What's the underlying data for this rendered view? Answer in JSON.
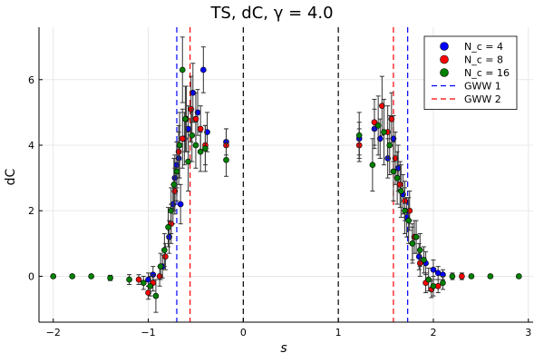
{
  "chart_data": {
    "type": "scatter",
    "title": "TS, dC, γ = 4.0",
    "xlabel": "s",
    "ylabel": "dC",
    "xlim": [
      -2.15,
      3.05
    ],
    "ylim": [
      -1.4,
      7.6
    ],
    "xticks": [
      -2,
      -1,
      0,
      1,
      2,
      3
    ],
    "yticks": [
      0,
      2,
      4,
      6
    ],
    "grid": true,
    "legend_position": "top-right",
    "vlines": [
      {
        "x": -0.7,
        "color": "#0000ff",
        "dash": true,
        "series": "GWW 1"
      },
      {
        "x": -0.56,
        "color": "#ff0000",
        "dash": true,
        "series": "GWW 2"
      },
      {
        "x": 0.0,
        "color": "#000000",
        "dash": true
      },
      {
        "x": 1.0,
        "color": "#000000",
        "dash": true
      },
      {
        "x": 1.58,
        "color": "#ff0000",
        "dash": true,
        "series": "GWW 2"
      },
      {
        "x": 1.73,
        "color": "#0000ff",
        "dash": true,
        "series": "GWW 1"
      }
    ],
    "series": [
      {
        "name": "N_c = 4",
        "color": "#0000ff",
        "points": [
          {
            "x": -1.0,
            "y": -0.1,
            "err": 0.2
          },
          {
            "x": -0.95,
            "y": 0.05,
            "err": 0.25
          },
          {
            "x": -0.85,
            "y": 0.3,
            "err": 0.35
          },
          {
            "x": -0.78,
            "y": 1.2,
            "err": 0.5
          },
          {
            "x": -0.74,
            "y": 2.2,
            "err": 0.6
          },
          {
            "x": -0.72,
            "y": 3.0,
            "err": 0.7
          },
          {
            "x": -0.7,
            "y": 3.4,
            "err": 0.7
          },
          {
            "x": -0.68,
            "y": 3.6,
            "err": 0.8
          },
          {
            "x": -0.66,
            "y": 2.2,
            "err": 0.6
          },
          {
            "x": -0.62,
            "y": 4.2,
            "err": 0.8
          },
          {
            "x": -0.58,
            "y": 4.5,
            "err": 0.7
          },
          {
            "x": -0.53,
            "y": 5.6,
            "err": 0.9
          },
          {
            "x": -0.48,
            "y": 5.0,
            "err": 0.7
          },
          {
            "x": -0.42,
            "y": 6.3,
            "err": 0.7
          },
          {
            "x": -0.38,
            "y": 4.4,
            "err": 0.6
          },
          {
            "x": -0.18,
            "y": 4.1,
            "err": 0.4
          },
          {
            "x": 1.22,
            "y": 4.2,
            "err": 0.5
          },
          {
            "x": 1.38,
            "y": 4.5,
            "err": 0.6
          },
          {
            "x": 1.44,
            "y": 4.2,
            "err": 0.6
          },
          {
            "x": 1.52,
            "y": 3.6,
            "err": 0.6
          },
          {
            "x": 1.58,
            "y": 4.2,
            "err": 0.7
          },
          {
            "x": 1.63,
            "y": 3.3,
            "err": 0.7
          },
          {
            "x": 1.68,
            "y": 2.5,
            "err": 0.6
          },
          {
            "x": 1.72,
            "y": 1.8,
            "err": 0.6
          },
          {
            "x": 1.78,
            "y": 1.0,
            "err": 0.5
          },
          {
            "x": 1.85,
            "y": 0.6,
            "err": 0.4
          },
          {
            "x": 1.92,
            "y": 0.4,
            "err": 0.35
          },
          {
            "x": 2.0,
            "y": 0.2,
            "err": 0.3
          },
          {
            "x": 2.05,
            "y": 0.1,
            "err": 0.2
          },
          {
            "x": 2.1,
            "y": 0.05,
            "err": 0.15
          }
        ]
      },
      {
        "name": "N_c = 8",
        "color": "#ff0000",
        "points": [
          {
            "x": -1.1,
            "y": -0.1,
            "err": 0.15
          },
          {
            "x": -1.0,
            "y": -0.5,
            "err": 0.2
          },
          {
            "x": -0.95,
            "y": -0.2,
            "err": 0.25
          },
          {
            "x": -0.88,
            "y": 0.0,
            "err": 0.3
          },
          {
            "x": -0.82,
            "y": 0.6,
            "err": 0.4
          },
          {
            "x": -0.76,
            "y": 1.6,
            "err": 0.6
          },
          {
            "x": -0.72,
            "y": 2.6,
            "err": 0.7
          },
          {
            "x": -0.68,
            "y": 3.8,
            "err": 0.8
          },
          {
            "x": -0.64,
            "y": 4.2,
            "err": 0.9
          },
          {
            "x": -0.6,
            "y": 4.8,
            "err": 1.0
          },
          {
            "x": -0.55,
            "y": 5.1,
            "err": 1.0
          },
          {
            "x": -0.5,
            "y": 4.8,
            "err": 0.8
          },
          {
            "x": -0.45,
            "y": 4.5,
            "err": 0.7
          },
          {
            "x": -0.4,
            "y": 4.0,
            "err": 0.6
          },
          {
            "x": -0.18,
            "y": 4.0,
            "err": 0.5
          },
          {
            "x": 1.22,
            "y": 4.0,
            "err": 0.5
          },
          {
            "x": 1.38,
            "y": 4.7,
            "err": 0.7
          },
          {
            "x": 1.46,
            "y": 5.2,
            "err": 0.9
          },
          {
            "x": 1.52,
            "y": 4.4,
            "err": 0.8
          },
          {
            "x": 1.56,
            "y": 4.8,
            "err": 0.8
          },
          {
            "x": 1.6,
            "y": 3.6,
            "err": 0.8
          },
          {
            "x": 1.65,
            "y": 2.8,
            "err": 0.7
          },
          {
            "x": 1.7,
            "y": 2.3,
            "err": 0.6
          },
          {
            "x": 1.75,
            "y": 2.0,
            "err": 0.6
          },
          {
            "x": 1.8,
            "y": 1.2,
            "err": 0.5
          },
          {
            "x": 1.86,
            "y": 0.4,
            "err": 0.4
          },
          {
            "x": 1.92,
            "y": -0.2,
            "err": 0.3
          },
          {
            "x": 1.98,
            "y": -0.4,
            "err": 0.25
          },
          {
            "x": 2.05,
            "y": -0.3,
            "err": 0.2
          },
          {
            "x": 2.3,
            "y": 0.0,
            "err": 0.1
          }
        ]
      },
      {
        "name": "N_c = 16",
        "color": "#008000",
        "points": [
          {
            "x": -2.0,
            "y": 0.0,
            "err": 0.05
          },
          {
            "x": -1.8,
            "y": 0.0,
            "err": 0.05
          },
          {
            "x": -1.6,
            "y": 0.0,
            "err": 0.05
          },
          {
            "x": -1.4,
            "y": -0.05,
            "err": 0.08
          },
          {
            "x": -1.2,
            "y": -0.1,
            "err": 0.15
          },
          {
            "x": -1.05,
            "y": -0.2,
            "err": 0.2
          },
          {
            "x": -0.98,
            "y": -0.3,
            "err": 0.3
          },
          {
            "x": -0.92,
            "y": -0.6,
            "err": 0.5
          },
          {
            "x": -0.87,
            "y": 0.3,
            "err": 0.4
          },
          {
            "x": -0.83,
            "y": 0.8,
            "err": 0.5
          },
          {
            "x": -0.79,
            "y": 1.5,
            "err": 0.6
          },
          {
            "x": -0.76,
            "y": 2.0,
            "err": 0.7
          },
          {
            "x": -0.73,
            "y": 2.8,
            "err": 0.8
          },
          {
            "x": -0.7,
            "y": 3.2,
            "err": 0.9
          },
          {
            "x": -0.67,
            "y": 4.0,
            "err": 1.0
          },
          {
            "x": -0.64,
            "y": 6.3,
            "err": 1.0
          },
          {
            "x": -0.61,
            "y": 4.8,
            "err": 1.0
          },
          {
            "x": -0.58,
            "y": 3.5,
            "err": 0.9
          },
          {
            "x": -0.54,
            "y": 4.3,
            "err": 0.8
          },
          {
            "x": -0.5,
            "y": 4.0,
            "err": 0.7
          },
          {
            "x": -0.45,
            "y": 3.8,
            "err": 0.6
          },
          {
            "x": -0.4,
            "y": 3.9,
            "err": 0.7
          },
          {
            "x": -0.18,
            "y": 3.55,
            "err": 0.5
          },
          {
            "x": 1.22,
            "y": 4.3,
            "err": 0.7
          },
          {
            "x": 1.36,
            "y": 3.4,
            "err": 0.8
          },
          {
            "x": 1.42,
            "y": 4.6,
            "err": 0.9
          },
          {
            "x": 1.48,
            "y": 4.4,
            "err": 1.0
          },
          {
            "x": 1.54,
            "y": 4.0,
            "err": 0.9
          },
          {
            "x": 1.58,
            "y": 3.2,
            "err": 0.9
          },
          {
            "x": 1.62,
            "y": 3.0,
            "err": 0.8
          },
          {
            "x": 1.66,
            "y": 2.6,
            "err": 0.8
          },
          {
            "x": 1.7,
            "y": 2.0,
            "err": 0.7
          },
          {
            "x": 1.74,
            "y": 1.7,
            "err": 0.7
          },
          {
            "x": 1.78,
            "y": 1.0,
            "err": 0.6
          },
          {
            "x": 1.82,
            "y": 1.2,
            "err": 0.5
          },
          {
            "x": 1.86,
            "y": 0.8,
            "err": 0.5
          },
          {
            "x": 1.9,
            "y": 0.5,
            "err": 0.4
          },
          {
            "x": 1.95,
            "y": -0.1,
            "err": 0.35
          },
          {
            "x": 2.0,
            "y": -0.3,
            "err": 0.3
          },
          {
            "x": 2.1,
            "y": -0.2,
            "err": 0.2
          },
          {
            "x": 2.2,
            "y": 0.0,
            "err": 0.1
          },
          {
            "x": 2.4,
            "y": 0.0,
            "err": 0.05
          },
          {
            "x": 2.6,
            "y": 0.0,
            "err": 0.05
          },
          {
            "x": 2.9,
            "y": 0.0,
            "err": 0.05
          }
        ]
      }
    ],
    "legend": [
      {
        "label": "N_c = 4",
        "type": "marker",
        "color": "#0000ff"
      },
      {
        "label": "N_c = 8",
        "type": "marker",
        "color": "#ff0000"
      },
      {
        "label": "N_c = 16",
        "type": "marker",
        "color": "#008000"
      },
      {
        "label": "GWW 1",
        "type": "dash",
        "color": "#0000ff"
      },
      {
        "label": "GWW 2",
        "type": "dash",
        "color": "#ff0000"
      }
    ]
  }
}
